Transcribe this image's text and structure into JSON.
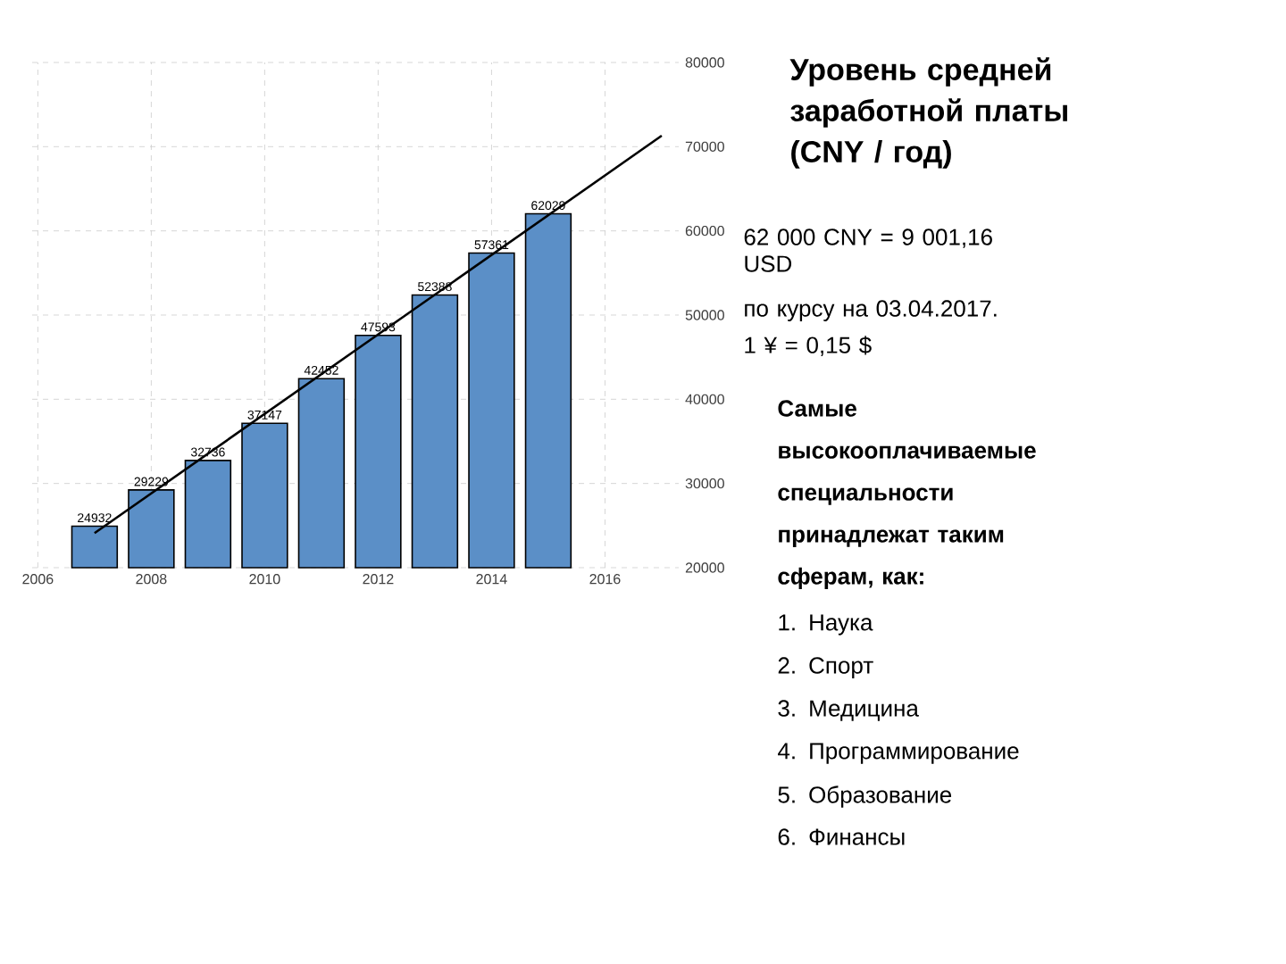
{
  "chart_data": {
    "type": "bar",
    "title": "Уровень средней заработной платы (CNY / год)",
    "x": [
      2007,
      2008,
      2009,
      2010,
      2011,
      2012,
      2013,
      2014,
      2015
    ],
    "series": [
      {
        "color": "#5b8fc7",
        "values": [
          24932,
          29229,
          32736,
          37147,
          42452,
          47593,
          52388,
          57361,
          62029
        ],
        "value_labels": [
          "24932",
          "29229",
          "32736",
          "37147",
          "42452",
          "47593",
          "52388",
          "57361",
          "62029"
        ]
      },
      {
        "type": "line",
        "color": "#000000",
        "x": [
          2007,
          2017
        ],
        "values": [
          24100,
          71300
        ]
      }
    ],
    "xlim": [
      2005.9,
      2017.3
    ],
    "ylim": [
      20000,
      80000
    ],
    "xticks": [
      2006,
      2008,
      2010,
      2012,
      2014,
      2016
    ],
    "yticks": [
      20000,
      30000,
      40000,
      50000,
      60000,
      70000,
      80000
    ],
    "grid": true,
    "annotations": [
      "62 000 CNY = 9 001,16 USD",
      "по курсу на 03.04.2017.",
      "1 ¥ = 0,15 $",
      "Самые высокооплачиваемые специальности принадлежат таким сферам, как:",
      "1. Наука",
      "2. Спорт",
      "3. Медицина",
      "4. Программирование",
      "5. Образование",
      "6. Финансы"
    ]
  }
}
